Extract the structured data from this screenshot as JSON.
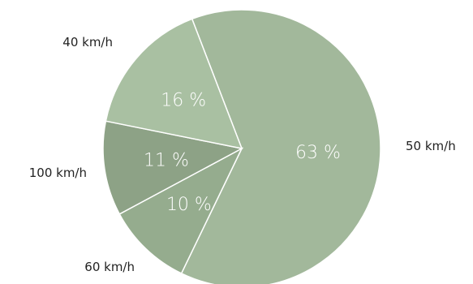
{
  "chart_data": {
    "type": "pie",
    "title": "",
    "start_angle_deg": -21,
    "direction": "clockwise",
    "slices": [
      {
        "label": "50 km/h",
        "value": 63,
        "value_label": "63 %",
        "color": "#a2b89b"
      },
      {
        "label": "60 km/h",
        "value": 10,
        "value_label": "10 %",
        "color": "#95ac8e"
      },
      {
        "label": "100 km/h",
        "value": 11,
        "value_label": "11 %",
        "color": "#8da286"
      },
      {
        "label": "40 km/h",
        "value": 16,
        "value_label": "16 %",
        "color": "#a9c0a2"
      }
    ]
  }
}
